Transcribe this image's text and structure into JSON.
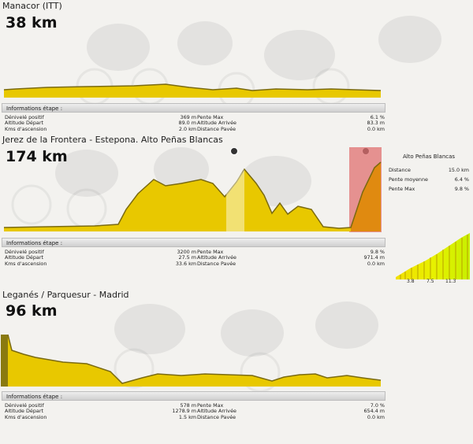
{
  "stages": [
    {
      "title": "Manacor (ITT)",
      "distance": "38 km",
      "info_header": "Informations étape :",
      "info": {
        "denivele_label": "Dénivelé positif",
        "denivele_value": "369 m",
        "alt_depart_label": "Altitude Départ",
        "alt_depart_value": "89.0 m",
        "kms_label": "Kms d'ascension",
        "kms_value": "2.0 km",
        "pente_label": "Pente Max",
        "pente_value": "6.1 %",
        "alt_arrivee_label": "Altitude Arrivée",
        "alt_arrivee_value": "83.3 m",
        "pavee_label": "Distance Pavée",
        "pavee_value": "0.0 km"
      }
    },
    {
      "title": "Jerez de la Frontera - Estepona. Alto Peñas Blancas",
      "distance": "174 km",
      "info_header": "Informations étape :",
      "info": {
        "denivele_label": "Dénivelé positif",
        "denivele_value": "3200 m",
        "alt_depart_label": "Altitude Départ",
        "alt_depart_value": "27.5 m",
        "kms_label": "Kms d'ascension",
        "kms_value": "33.6 km",
        "pente_label": "Pente Max",
        "pente_value": "9.8 %",
        "alt_arrivee_label": "Altitude Arrivée",
        "alt_arrivee_value": "971.4 m",
        "pavee_label": "Distance Pavée",
        "pavee_value": "0.0 km"
      },
      "climb": {
        "name": "Alto Peñas Blancas",
        "distance_label": "Distance",
        "distance_value": "15.0 km",
        "avg_label": "Pente moyenne",
        "avg_value": "6.4 %",
        "max_label": "Pente Max",
        "max_value": "9.8 %",
        "km_marks": [
          "3.8",
          "7.5",
          "11.3"
        ]
      }
    },
    {
      "title": "Leganés / Parquesur - Madrid",
      "distance": "96 km",
      "info_header": "Informations étape :",
      "info": {
        "denivele_label": "Dénivelé positif",
        "denivele_value": "578 m",
        "alt_depart_label": "Altitude Départ",
        "alt_depart_value": "1278.9 m",
        "kms_label": "Kms d'ascension",
        "kms_value": "1.5 km",
        "pente_label": "Pente Max",
        "pente_value": "7.0 %",
        "alt_arrivee_label": "Altitude Arrivée",
        "alt_arrivee_value": "654.4 m",
        "pavee_label": "Distance Pavée",
        "pavee_value": "0.0 km"
      }
    }
  ],
  "colors": {
    "profile_fill": "#e8c800",
    "profile_dark": "#8a7a10",
    "climb_zone": "#e07070",
    "background": "#f3f2ef"
  }
}
